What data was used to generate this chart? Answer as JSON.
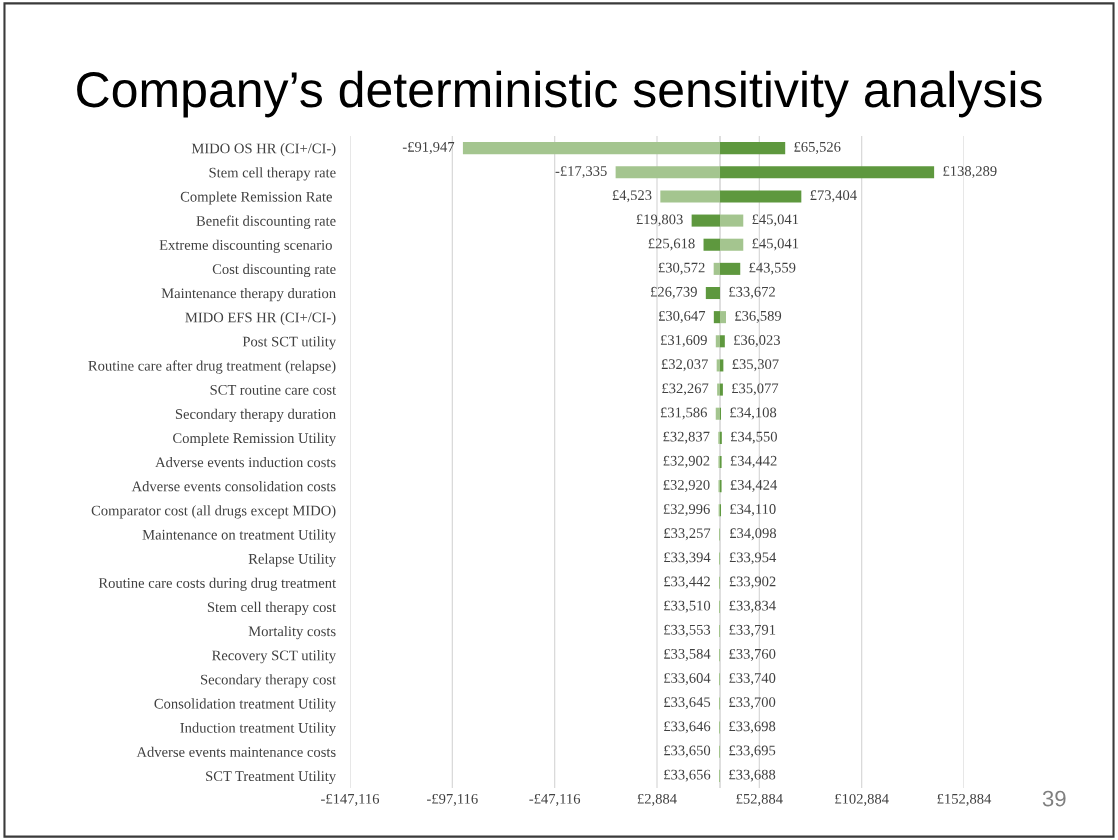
{
  "chart_data": {
    "type": "bar",
    "orientation": "horizontal",
    "title": "Company’s deterministic sensitivity analysis",
    "categories": [
      "MIDO OS HR (CI+/CI-)",
      "Stem cell therapy rate",
      "Complete Remission Rate ",
      "Benefit discounting rate",
      "Extreme discounting scenario ",
      "Cost discounting rate",
      "Maintenance therapy duration",
      "MIDO EFS HR (CI+/CI-)",
      "Post SCT utility",
      "Routine care after drug treatment (relapse)",
      "SCT routine care cost",
      "Secondary therapy duration",
      "Complete Remission Utility",
      "Adverse events induction costs",
      "Adverse events consolidation costs",
      "Comparator cost (all drugs except MIDO)",
      "Maintenance on treatment Utility",
      "Relapse Utility",
      "Routine care costs during drug treatment",
      "Stem cell therapy cost",
      "Mortality costs",
      "Recovery SCT utility",
      "Secondary therapy cost",
      "Consolidation treatment Utility",
      "Induction treatment Utility",
      "Adverse events maintenance costs",
      "SCT Treatment Utility"
    ],
    "series": [
      {
        "color": "#a4c58f",
        "base": [
          33672,
          33672,
          33672,
          33672,
          33672,
          33672,
          null,
          33672,
          33672,
          33672,
          33672,
          33672,
          33672,
          33672,
          33672,
          33672,
          33672,
          33672,
          33672,
          33672,
          33672,
          33672,
          33672,
          33672,
          33672,
          33672,
          33672
        ],
        "values": [
          -125619,
          -51007,
          -29149,
          11369,
          11369,
          -3100,
          null,
          2917,
          -2063,
          -1635,
          -1405,
          -2086,
          -835,
          -770,
          -752,
          -676,
          -415,
          -278,
          -230,
          -162,
          -119,
          -88,
          -68,
          -27,
          -26,
          -22,
          -16
        ],
        "value_labels": [
          "-£91,947",
          "-£17,335",
          "£4,523",
          "£45,041",
          "£45,041",
          "£30,572",
          null,
          "£36,589",
          "£31,609",
          "£32,037",
          "£32,267",
          "£31,586",
          "£32,837",
          "£32,902",
          "£32,920",
          "£32,996",
          "£33,257",
          "£33,394",
          "£33,442",
          "£33,510",
          "£33,553",
          "£33,584",
          "£33,604",
          "£33,645",
          "£33,646",
          "£33,650",
          "£33,656"
        ]
      },
      {
        "color": "#5e983e",
        "base": [
          33672,
          33672,
          33672,
          33672,
          33672,
          33672,
          33672,
          33672,
          33672,
          33672,
          33672,
          33672,
          33672,
          33672,
          33672,
          33672,
          null,
          null,
          null,
          null,
          null,
          null,
          null,
          null,
          null,
          null,
          null
        ],
        "values": [
          31854,
          104617,
          39732,
          -13869,
          -8054,
          9887,
          -6933,
          -3025,
          2351,
          1635,
          1405,
          436,
          878,
          770,
          752,
          438,
          null,
          null,
          null,
          null,
          null,
          null,
          null,
          null,
          null,
          null,
          null
        ],
        "value_labels": [
          "£65,526",
          "£138,289",
          "£73,404",
          "£19,803",
          "£25,618",
          "£43,559",
          "£26,739",
          "£30,647",
          "£36,023",
          "£35,307",
          "£35,077",
          "£34,108",
          "£34,550",
          "£34,442",
          "£34,424",
          "£34,110",
          null,
          null,
          null,
          null,
          null,
          null,
          null,
          null,
          null,
          null,
          null
        ]
      }
    ],
    "xlim": [
      -147116,
      152884
    ],
    "xticks": [
      {
        "value": -147116,
        "label": "-£147,116"
      },
      {
        "value": -97116,
        "label": "-£97,116"
      },
      {
        "value": -47116,
        "label": "-£47,116"
      },
      {
        "value": 2884,
        "label": "£2,884"
      },
      {
        "value": 52884,
        "label": "£52,884"
      },
      {
        "value": 102884,
        "label": "£102,884"
      },
      {
        "value": 152884,
        "label": "£152,884"
      }
    ],
    "grid": "x",
    "ref_lines": [
      {
        "axis": "x",
        "value": 33672,
        "color": "#d0d0d0"
      }
    ],
    "annotations": [
      "39",
      {
        "text": "£33,672",
        "x": 33672,
        "y": "Maintenance therapy duration"
      },
      {
        "text": "£34,098",
        "x": 34098,
        "y": "Maintenance on treatment Utility"
      },
      {
        "text": "£33,954",
        "x": 33954,
        "y": "Relapse Utility"
      },
      {
        "text": "£33,902",
        "x": 33902,
        "y": "Routine care costs during drug treatment"
      },
      {
        "text": "£33,834",
        "x": 33834,
        "y": "Stem cell therapy cost"
      },
      {
        "text": "£33,791",
        "x": 33791,
        "y": "Mortality costs"
      },
      {
        "text": "£33,760",
        "x": 33760,
        "y": "Recovery SCT utility"
      },
      {
        "text": "£33,740",
        "x": 33740,
        "y": "Secondary therapy cost"
      },
      {
        "text": "£33,700",
        "x": 33700,
        "y": "Consolidation treatment Utility"
      },
      {
        "text": "£33,698",
        "x": 33698,
        "y": "Induction treatment Utility"
      },
      {
        "text": "£33,695",
        "x": 33695,
        "y": "Adverse events maintenance costs"
      },
      {
        "text": "£33,688",
        "x": 33688,
        "y": "SCT Treatment Utility"
      }
    ]
  }
}
